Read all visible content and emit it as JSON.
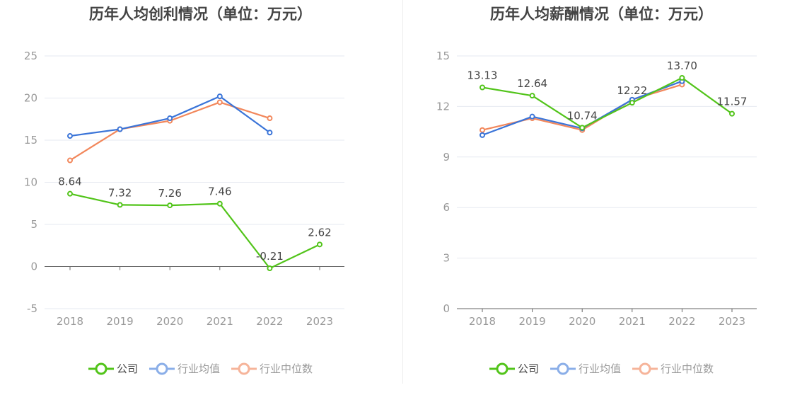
{
  "colors": {
    "company": "#52c41a",
    "industry_avg": "#3a74d8",
    "industry_median": "#f2875b",
    "legend_avg": "#8aaee8",
    "legend_median": "#f6b49a",
    "grid": "#e6e9f0",
    "axis": "#666666"
  },
  "legend": [
    "公司",
    "行业均值",
    "行业中位数"
  ],
  "chart_data": [
    {
      "type": "line",
      "title": "历年人均创利情况（单位：万元）",
      "categories": [
        "2018",
        "2019",
        "2020",
        "2021",
        "2022",
        "2023"
      ],
      "ylim": [
        -5,
        25
      ],
      "yticks": [
        "-5",
        "0",
        "5",
        "10",
        "15",
        "20",
        "25"
      ],
      "series": [
        {
          "name": "公司",
          "values": [
            8.64,
            7.32,
            7.26,
            7.46,
            -0.21,
            2.62
          ],
          "labels": [
            "8.64",
            "7.32",
            "7.26",
            "7.46",
            "-0.21",
            "2.62"
          ]
        },
        {
          "name": "行业均值",
          "values": [
            15.5,
            16.3,
            17.6,
            20.2,
            15.9,
            null
          ]
        },
        {
          "name": "行业中位数",
          "values": [
            12.6,
            16.3,
            17.3,
            19.5,
            17.6,
            null
          ]
        }
      ]
    },
    {
      "type": "line",
      "title": "历年人均薪酬情况（单位：万元）",
      "categories": [
        "2018",
        "2019",
        "2020",
        "2021",
        "2022",
        "2023"
      ],
      "ylim": [
        0,
        15
      ],
      "yticks": [
        "0",
        "3",
        "6",
        "9",
        "12",
        "15"
      ],
      "series": [
        {
          "name": "公司",
          "values": [
            13.13,
            12.64,
            10.74,
            12.22,
            13.7,
            11.57
          ],
          "labels": [
            "13.13",
            "12.64",
            "10.74",
            "12.22",
            "13.70",
            "11.57"
          ]
        },
        {
          "name": "行业均值",
          "values": [
            10.3,
            11.4,
            10.7,
            12.4,
            13.5,
            null
          ]
        },
        {
          "name": "行业中位数",
          "values": [
            10.6,
            11.3,
            10.6,
            12.4,
            13.3,
            null
          ]
        }
      ]
    }
  ]
}
